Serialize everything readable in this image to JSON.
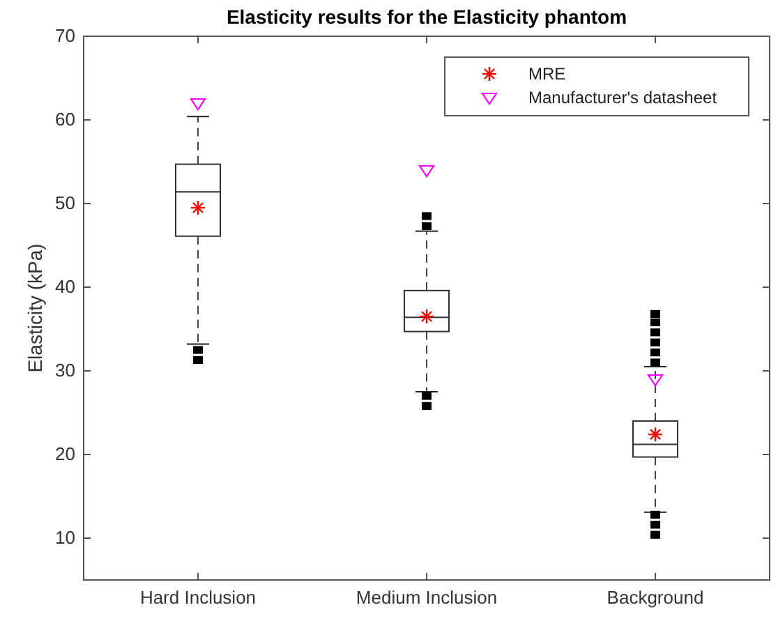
{
  "chart_data": {
    "type": "box",
    "title": "Elasticity results for the Elasticity phantom",
    "ylabel": "Elasticity (kPa)",
    "categories": [
      "Hard Inclusion",
      "Medium Inclusion",
      "Background"
    ],
    "boxes": [
      {
        "low": 33.2,
        "q1": 46.1,
        "median": 51.4,
        "q3": 54.7,
        "high": 60.4,
        "outliers": [
          31.3,
          32.5
        ]
      },
      {
        "low": 27.5,
        "q1": 34.7,
        "median": 36.4,
        "q3": 39.6,
        "high": 46.7,
        "outliers": [
          25.8,
          27.0,
          47.3,
          48.5
        ]
      },
      {
        "low": 13.1,
        "q1": 19.7,
        "median": 21.2,
        "q3": 24.0,
        "high": 30.5,
        "outliers": [
          10.4,
          11.6,
          12.8,
          31.0,
          32.2,
          33.4,
          34.6,
          35.8,
          36.8
        ]
      }
    ],
    "series": [
      {
        "type": "scatter",
        "name": "MRE",
        "color": "#ff0000",
        "marker": "cross",
        "x": [
          "Hard Inclusion",
          "Medium Inclusion",
          "Background"
        ],
        "values": [
          49.5,
          36.5,
          22.4
        ]
      },
      {
        "type": "scatter",
        "name": "Manufacturer's datasheet",
        "color": "#ff00ff",
        "marker": "triangle",
        "x": [
          "Hard Inclusion",
          "Medium Inclusion",
          "Background"
        ],
        "values": [
          62,
          54,
          29
        ]
      }
    ],
    "ylim": [
      5,
      70
    ],
    "yticks": [
      10,
      20,
      30,
      40,
      50,
      60,
      70
    ],
    "grid": false,
    "legend": "top right"
  }
}
